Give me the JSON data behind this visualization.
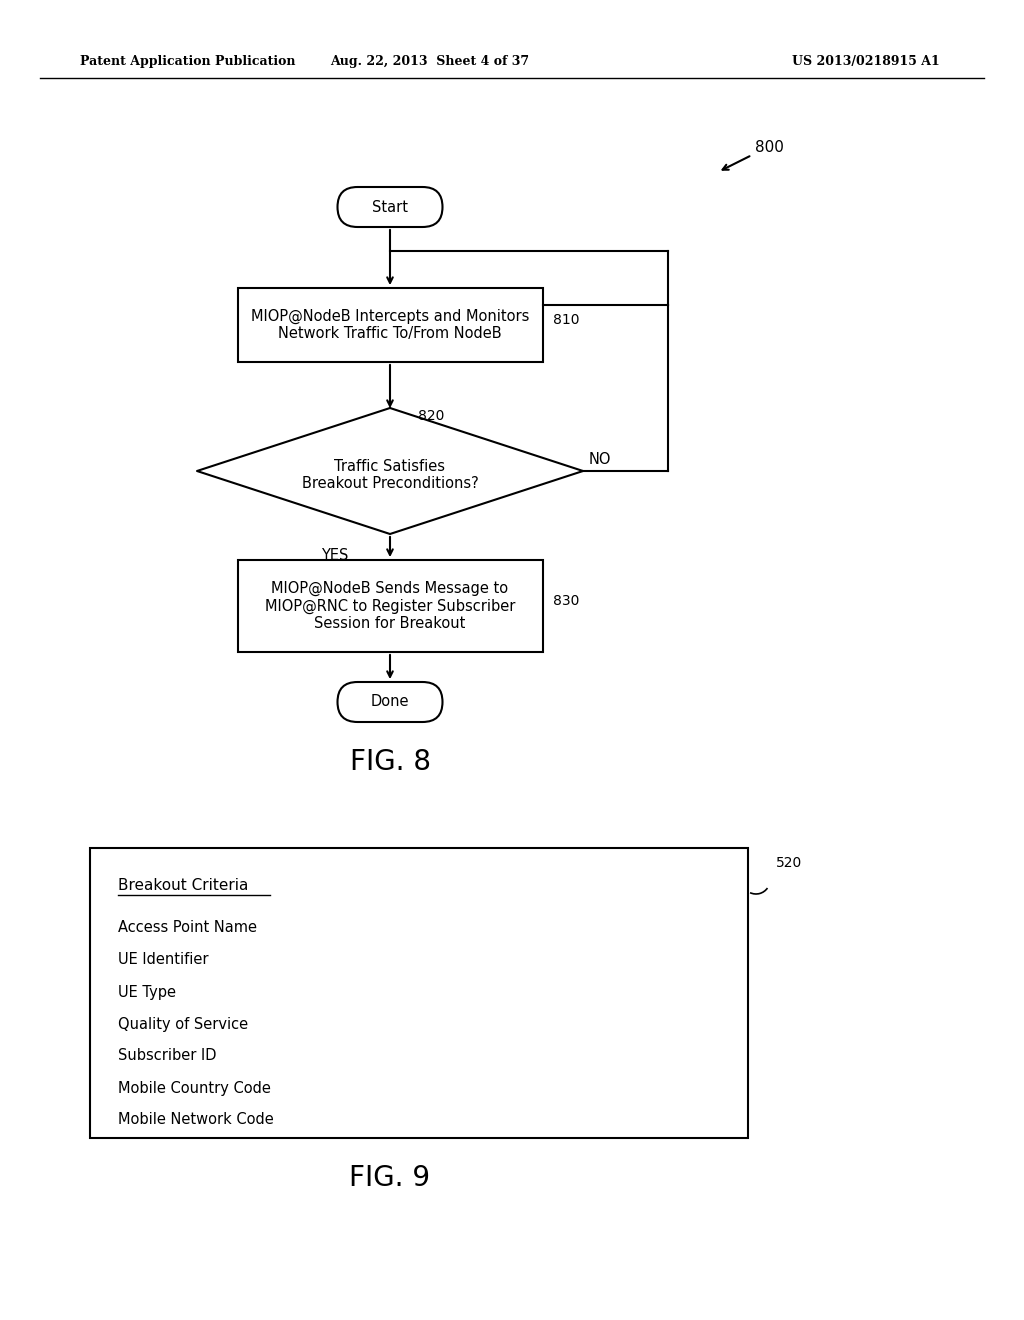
{
  "bg_color": "#ffffff",
  "header_left": "Patent Application Publication",
  "header_mid": "Aug. 22, 2013  Sheet 4 of 37",
  "header_right": "US 2013/0218915 A1",
  "fig8_label": "800",
  "fig8_caption": "FIG. 8",
  "fig9_caption": "FIG. 9",
  "fig9_box_label": "520",
  "start_text": "Start",
  "box810_text": "MIOP@NodeB Intercepts and Monitors\nNetwork Traffic To/From NodeB",
  "box810_label": "810",
  "diamond820_text": "Traffic Satisfies\nBreakout Preconditions?",
  "diamond820_label": "820",
  "no_label": "NO",
  "yes_label": "YES",
  "box830_text": "MIOP@NodeB Sends Message to\nMIOP@RNC to Register Subscriber\nSession for Breakout",
  "box830_label": "830",
  "done_text": "Done",
  "breakout_title": "Breakout Criteria",
  "breakout_items": [
    "Access Point Name",
    "UE Identifier",
    "UE Type",
    "Quality of Service",
    "Subscriber ID",
    "Mobile Country Code",
    "Mobile Network Code"
  ],
  "font_size_header": 9,
  "font_size_body": 11,
  "font_size_caption": 20,
  "font_size_label": 10,
  "font_size_node": 10.5
}
